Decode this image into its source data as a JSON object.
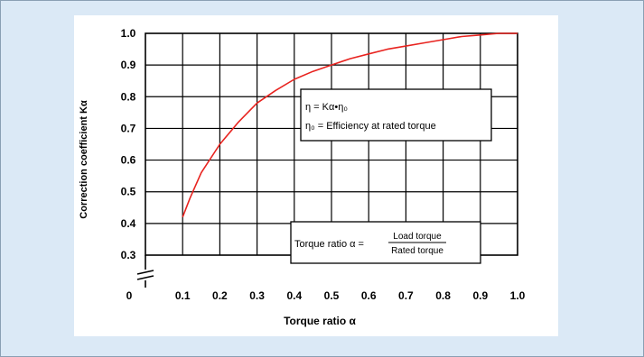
{
  "colors": {
    "page_background": "#dbe9f6",
    "card_background": "#ffffff",
    "curve": "#e8231f",
    "grid": "#000000",
    "text": "#000000"
  },
  "chart_data": {
    "type": "line",
    "title": "",
    "xlabel": "Torque ratio α",
    "ylabel": "Correction coefficient Kα",
    "xlim": [
      0,
      1.0
    ],
    "ylim": [
      0,
      1.0
    ],
    "x_ticks": [
      0.1,
      0.2,
      0.3,
      0.4,
      0.5,
      0.6,
      0.7,
      0.8,
      0.9,
      1.0
    ],
    "x_tick_labels": [
      "0.1",
      "0.2",
      "0.3",
      "0.4",
      "0.5",
      "0.6",
      "0.7",
      "0.8",
      "0.9",
      "1.0"
    ],
    "y_ticks": [
      0.3,
      0.4,
      0.5,
      0.6,
      0.7,
      0.8,
      0.9,
      1.0
    ],
    "y_tick_labels": [
      "0.3",
      "0.4",
      "0.5",
      "0.6",
      "0.7",
      "0.8",
      "0.9",
      "1.0"
    ],
    "origin_label": "0",
    "axis_break": true,
    "grid": true,
    "legend": "none",
    "series": [
      {
        "x": [
          0.1,
          0.12,
          0.15,
          0.2,
          0.25,
          0.3,
          0.35,
          0.4,
          0.45,
          0.5,
          0.55,
          0.6,
          0.65,
          0.7,
          0.75,
          0.8,
          0.85,
          0.9,
          0.95,
          1.0
        ],
        "y": [
          0.42,
          0.48,
          0.56,
          0.65,
          0.72,
          0.78,
          0.82,
          0.855,
          0.88,
          0.9,
          0.92,
          0.935,
          0.95,
          0.96,
          0.97,
          0.98,
          0.99,
          0.995,
          1.0,
          1.0
        ]
      }
    ],
    "annotations": {
      "efficiency_box": {
        "line1": "η = Kα•η₀",
        "line2": "η₀ = Efficiency at rated torque"
      },
      "ratio_box": {
        "prefix": "Torque ratio α =",
        "numerator": "Load torque",
        "denominator": "Rated torque"
      }
    }
  }
}
